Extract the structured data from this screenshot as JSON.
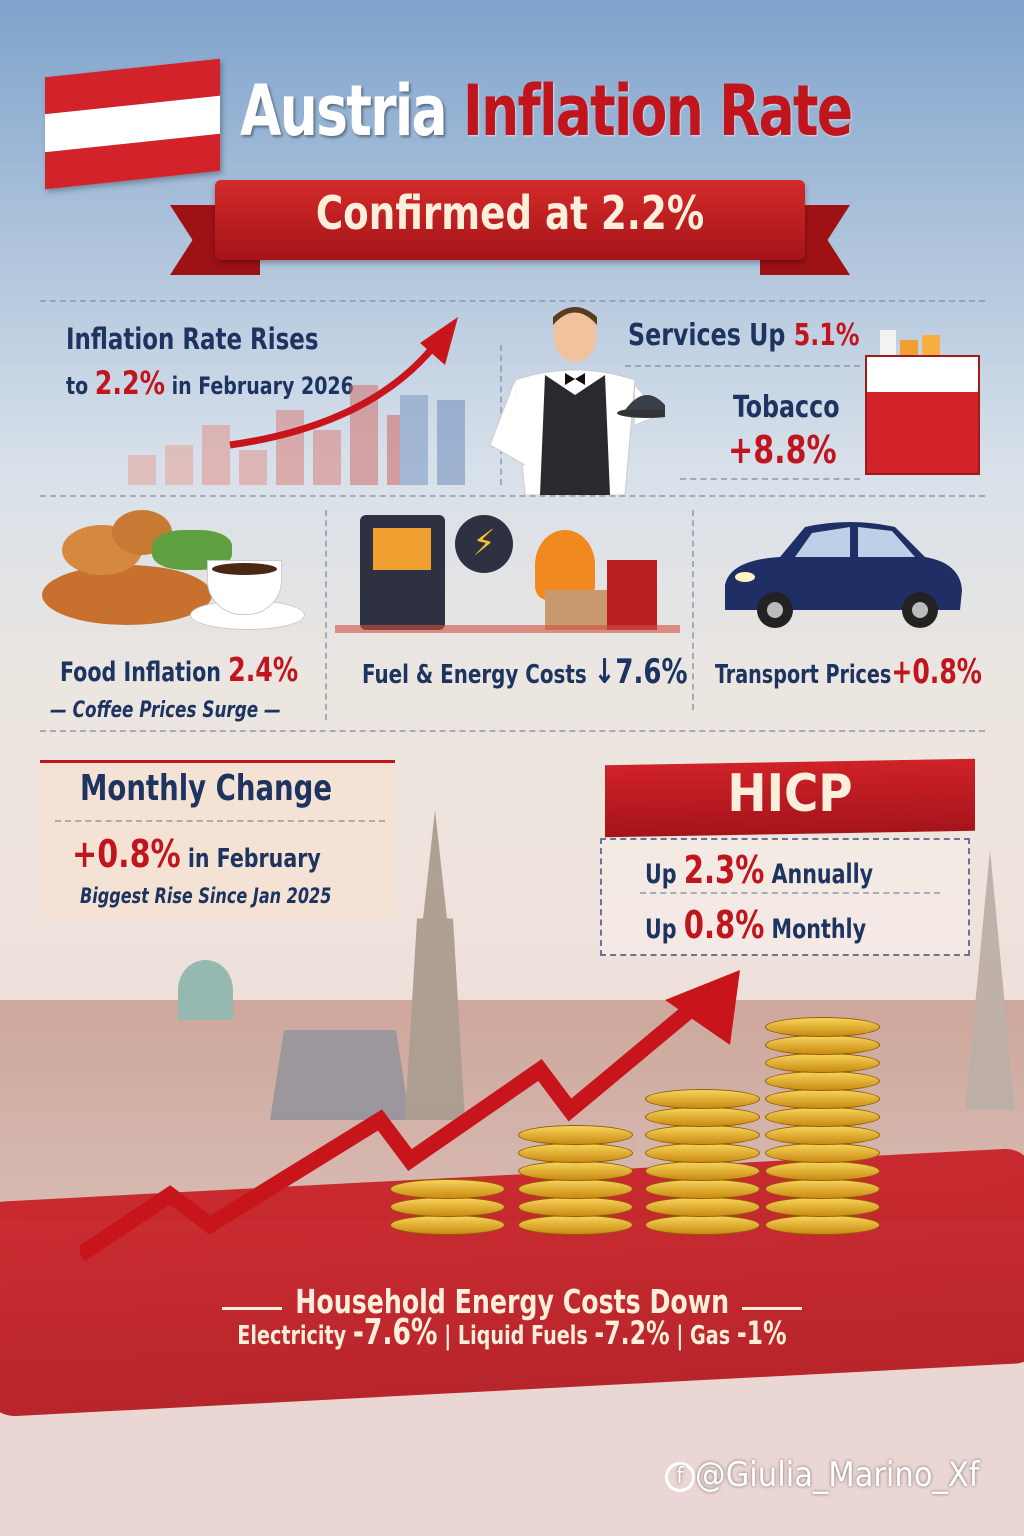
{
  "header": {
    "title_part1": "Austria",
    "title_part2": "Inflation Rate",
    "banner": "Confirmed at 2.2%"
  },
  "headline": {
    "line1": "Inflation Rate Rises",
    "line2_prefix": "to ",
    "line2_value": "2.2%",
    "line2_suffix": " in February 2026"
  },
  "services": {
    "label": "Services Up ",
    "value": "5.1%"
  },
  "tobacco": {
    "label": "Tobacco",
    "value": "+8.8%"
  },
  "food": {
    "label": "Food Inflation ",
    "value": "2.4%",
    "note": "— Coffee Prices Surge —"
  },
  "fuel": {
    "label": "Fuel & Energy Costs ",
    "value": "↓7.6%"
  },
  "transport": {
    "label": "Transport Prices",
    "value": "+0.8%"
  },
  "monthly": {
    "title": "Monthly Change",
    "value": "+0.8%",
    "value_suffix": " in February",
    "note": "Biggest Rise Since Jan 2025"
  },
  "hicp": {
    "title": "HICP",
    "annual_prefix": "Up ",
    "annual_value": "2.3%",
    "annual_suffix": " Annually",
    "monthly_prefix": "Up ",
    "monthly_value": "0.8%",
    "monthly_suffix": " Monthly"
  },
  "household": {
    "title": "Household Energy Costs Down",
    "electricity_label": "Electricity ",
    "electricity_value": "-7.6%",
    "liquid_label": "Liquid Fuels ",
    "liquid_value": "-7.2%",
    "gas_label": "Gas ",
    "gas_value": "-1%",
    "sep": "|"
  },
  "watermark": "@Giulia_Marino_Xf",
  "colors": {
    "accent_red": "#c0151c",
    "navy": "#1d3461",
    "cream": "#fbefdc"
  }
}
